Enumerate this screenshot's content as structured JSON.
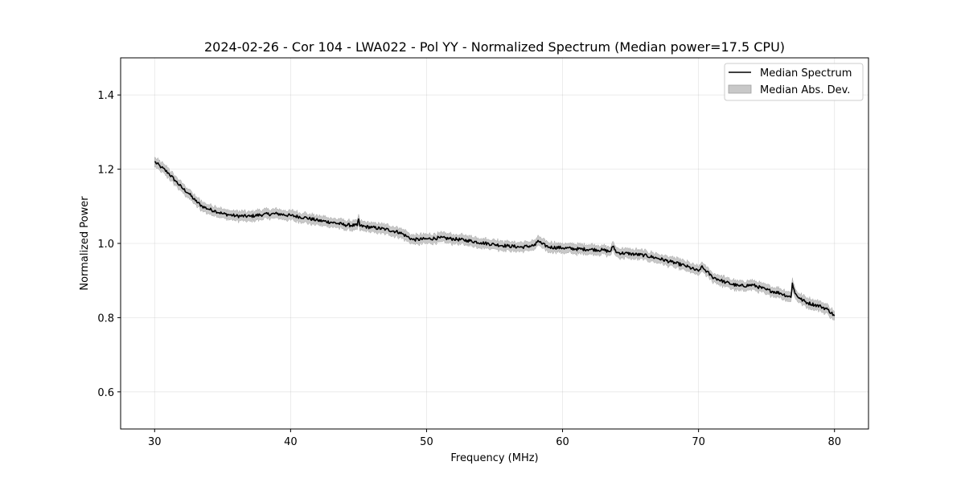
{
  "chart_data": {
    "type": "line",
    "title": "2024-02-26 - Cor 104 - LWA022 - Pol YY - Normalized Spectrum (Median power=17.5 CPU)",
    "xlabel": "Frequency (MHz)",
    "ylabel": "Normalized Power",
    "xlim": [
      27.5,
      82.5
    ],
    "ylim": [
      0.5,
      1.5
    ],
    "xticks": [
      30,
      40,
      50,
      60,
      70,
      80
    ],
    "yticks": [
      0.6,
      0.8,
      1.0,
      1.2,
      1.4
    ],
    "xtick_labels": [
      "30",
      "40",
      "50",
      "60",
      "70",
      "80"
    ],
    "ytick_labels": [
      "0.6",
      "0.8",
      "1.0",
      "1.2",
      "1.4"
    ],
    "grid": true,
    "legend_position": "top-right",
    "legend": [
      "Median Spectrum",
      "Median Abs. Dev."
    ],
    "series": [
      {
        "name": "Median Spectrum",
        "color": "#000000",
        "x": [
          30,
          30.5,
          31,
          31.5,
          32,
          32.5,
          33,
          33.5,
          34,
          34.5,
          35,
          35.5,
          36,
          37,
          38,
          39,
          40,
          41,
          42,
          43,
          44,
          44.9,
          45.0,
          45.1,
          46,
          47,
          48,
          48.5,
          49,
          50,
          51,
          52,
          53,
          54,
          55,
          56,
          57,
          58,
          58.2,
          58.5,
          59,
          60,
          61,
          62,
          63,
          63.5,
          63.7,
          64,
          65,
          66,
          67,
          68,
          69,
          70,
          70.2,
          70.5,
          71,
          72,
          73,
          74,
          75,
          76,
          76.8,
          76.9,
          77.1,
          77.5,
          78,
          79,
          79.5,
          80
        ],
        "values": [
          1.22,
          1.205,
          1.19,
          1.17,
          1.15,
          1.135,
          1.115,
          1.1,
          1.092,
          1.087,
          1.08,
          1.077,
          1.074,
          1.073,
          1.078,
          1.08,
          1.075,
          1.07,
          1.062,
          1.057,
          1.05,
          1.048,
          1.066,
          1.047,
          1.043,
          1.038,
          1.03,
          1.02,
          1.01,
          1.012,
          1.015,
          1.012,
          1.008,
          1.002,
          0.997,
          0.993,
          0.99,
          0.995,
          1.008,
          0.998,
          0.99,
          0.988,
          0.985,
          0.984,
          0.982,
          0.978,
          0.992,
          0.975,
          0.972,
          0.968,
          0.96,
          0.95,
          0.94,
          0.925,
          0.937,
          0.928,
          0.91,
          0.895,
          0.885,
          0.888,
          0.875,
          0.866,
          0.855,
          0.893,
          0.865,
          0.85,
          0.84,
          0.83,
          0.822,
          0.805
        ]
      },
      {
        "name": "Median Abs. Dev.",
        "color": "#c8c8c8",
        "type": "band",
        "half_width": 0.01
      }
    ]
  }
}
